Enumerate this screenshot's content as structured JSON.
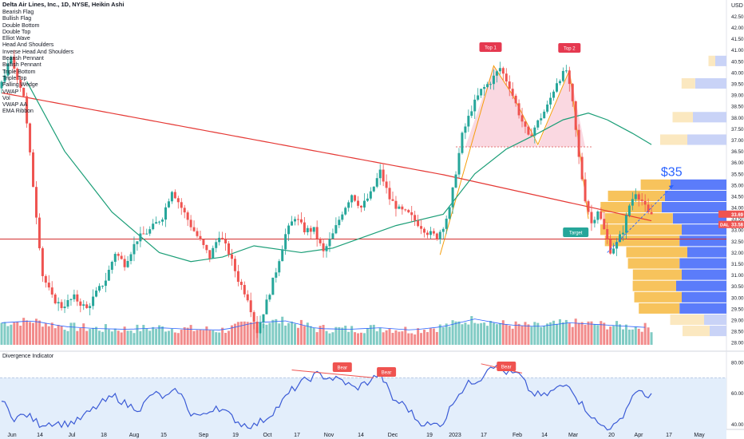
{
  "header": {
    "title": "Delta Air Lines, Inc., 1D, NYSE, Heikin Ashi",
    "currency": "USD",
    "ticker_badge": "DAL",
    "price_last": "33.58",
    "price_current": "33.69"
  },
  "overlays": [
    "Bearish Flag",
    "Bullish Flag",
    "Double Bottom",
    "Double Top",
    "Elliot Wave",
    "Head And Shoulders",
    "Inverse Head And Shoulders",
    "Bearish Pennant",
    "Bullish Pennant",
    "Triple Bottom",
    "Triple Top",
    "Falling Wedge",
    "VWAP",
    "Vol",
    "VWAP AA",
    "EMA Ribbon"
  ],
  "annotations": {
    "top1": "Top 1",
    "top2": "Top 2",
    "target": "Target",
    "price_target": "$35",
    "bear": "Bear"
  },
  "indicator": {
    "title": "Divergence Indicator"
  },
  "colors": {
    "up": "#26a69a",
    "down": "#ef5350",
    "ma_long": "#e53935",
    "ma_mid": "#1b9e77",
    "volume_up": "#80cbc4",
    "volume_down": "#f28b8b",
    "profile_up": "#f7c35c",
    "profile_down": "#5b7cfa",
    "osc_line": "#3b5bd6",
    "osc_band": "#e3eefb",
    "support": "#d32f2f"
  },
  "chart_data": {
    "type": "candlestick",
    "x_ticks": [
      "Jun",
      "14",
      "Jul",
      "18",
      "Aug",
      "15",
      "Sep",
      "19",
      "Oct",
      "17",
      "Nov",
      "14",
      "Dec",
      "19",
      "2023",
      "17",
      "Feb",
      "14",
      "Mar",
      "20",
      "Apr",
      "17",
      "May"
    ],
    "y_ticks": [
      "42.50",
      "42.00",
      "41.50",
      "41.00",
      "40.50",
      "40.00",
      "39.50",
      "39.00",
      "38.50",
      "38.00",
      "37.50",
      "37.00",
      "36.50",
      "36.00",
      "35.50",
      "35.00",
      "34.50",
      "34.00",
      "33.50",
      "33.00",
      "32.50",
      "32.00",
      "31.50",
      "31.00",
      "30.50",
      "30.00",
      "29.50",
      "29.00",
      "28.50",
      "28.00"
    ],
    "ylim": [
      27.9,
      42.8
    ],
    "support_level": 32.6,
    "neckline_level": 36.7,
    "price_path": [
      [
        0,
        39.3
      ],
      [
        4,
        40.6
      ],
      [
        8,
        39.0
      ],
      [
        11,
        35.0
      ],
      [
        14,
        31.0
      ],
      [
        17,
        30.0
      ],
      [
        20,
        29.6
      ],
      [
        24,
        30.0
      ],
      [
        28,
        29.5
      ],
      [
        31,
        30.2
      ],
      [
        34,
        30.8
      ],
      [
        37,
        32.0
      ],
      [
        40,
        31.5
      ],
      [
        44,
        32.6
      ],
      [
        48,
        33.0
      ],
      [
        52,
        33.6
      ],
      [
        55,
        34.8
      ],
      [
        58,
        34.0
      ],
      [
        61,
        33.2
      ],
      [
        64,
        32.5
      ],
      [
        67,
        31.8
      ],
      [
        70,
        32.8
      ],
      [
        73,
        32.0
      ],
      [
        76,
        30.8
      ],
      [
        79,
        30.0
      ],
      [
        82,
        28.5
      ],
      [
        85,
        29.8
      ],
      [
        88,
        31.2
      ],
      [
        91,
        32.8
      ],
      [
        94,
        33.6
      ],
      [
        97,
        33.0
      ],
      [
        100,
        33.0
      ],
      [
        103,
        32.0
      ],
      [
        106,
        32.8
      ],
      [
        109,
        33.8
      ],
      [
        112,
        34.6
      ],
      [
        115,
        34.0
      ],
      [
        118,
        34.6
      ],
      [
        121,
        35.6
      ],
      [
        124,
        34.4
      ],
      [
        127,
        33.9
      ],
      [
        130,
        33.7
      ],
      [
        133,
        33.3
      ],
      [
        136,
        32.9
      ],
      [
        139,
        32.7
      ],
      [
        141,
        33.2
      ],
      [
        143,
        33.9
      ],
      [
        145,
        35.6
      ],
      [
        147,
        37.2
      ],
      [
        150,
        38.4
      ],
      [
        153,
        39.2
      ],
      [
        156,
        39.6
      ],
      [
        159,
        40.2
      ],
      [
        162,
        39.4
      ],
      [
        165,
        38.2
      ],
      [
        168,
        37.1
      ],
      [
        171,
        37.8
      ],
      [
        174,
        38.5
      ],
      [
        177,
        39.6
      ],
      [
        180,
        40.1
      ],
      [
        182,
        38.6
      ],
      [
        184,
        36.2
      ],
      [
        186,
        34.4
      ],
      [
        188,
        33.3
      ],
      [
        190,
        33.9
      ],
      [
        192,
        33.0
      ],
      [
        194,
        32.1
      ],
      [
        196,
        32.4
      ],
      [
        198,
        33.0
      ],
      [
        200,
        34.1
      ],
      [
        202,
        34.7
      ],
      [
        204,
        34.3
      ],
      [
        206,
        33.7
      ]
    ],
    "volume_path": [
      [
        0,
        0.45
      ],
      [
        10,
        0.5
      ],
      [
        20,
        0.35
      ],
      [
        30,
        0.3
      ],
      [
        40,
        0.28
      ],
      [
        50,
        0.32
      ],
      [
        60,
        0.28
      ],
      [
        70,
        0.26
      ],
      [
        80,
        0.45
      ],
      [
        90,
        0.5
      ],
      [
        100,
        0.3
      ],
      [
        110,
        0.28
      ],
      [
        120,
        0.32
      ],
      [
        130,
        0.26
      ],
      [
        140,
        0.35
      ],
      [
        150,
        0.55
      ],
      [
        160,
        0.4
      ],
      [
        170,
        0.35
      ],
      [
        180,
        0.45
      ],
      [
        190,
        0.4
      ],
      [
        200,
        0.35
      ],
      [
        206,
        0.32
      ]
    ],
    "oscillator_ylim": [
      36,
      82
    ],
    "oscillator_ticks": [
      "80.00",
      "60.00",
      "40.00"
    ],
    "oscillator_path": [
      [
        0,
        55
      ],
      [
        4,
        44
      ],
      [
        8,
        46
      ],
      [
        12,
        40
      ],
      [
        16,
        41
      ],
      [
        20,
        40
      ],
      [
        24,
        42
      ],
      [
        28,
        48
      ],
      [
        32,
        54
      ],
      [
        36,
        58
      ],
      [
        40,
        52
      ],
      [
        44,
        50
      ],
      [
        48,
        60
      ],
      [
        52,
        57
      ],
      [
        56,
        62
      ],
      [
        60,
        47
      ],
      [
        64,
        45
      ],
      [
        68,
        52
      ],
      [
        72,
        46
      ],
      [
        76,
        40
      ],
      [
        80,
        39
      ],
      [
        84,
        44
      ],
      [
        88,
        52
      ],
      [
        92,
        62
      ],
      [
        96,
        68
      ],
      [
        100,
        72
      ],
      [
        104,
        70
      ],
      [
        108,
        68
      ],
      [
        112,
        63
      ],
      [
        116,
        67
      ],
      [
        120,
        73
      ],
      [
        124,
        56
      ],
      [
        128,
        52
      ],
      [
        132,
        42
      ],
      [
        136,
        39
      ],
      [
        140,
        41
      ],
      [
        144,
        58
      ],
      [
        148,
        66
      ],
      [
        152,
        70
      ],
      [
        155,
        79
      ],
      [
        158,
        75
      ],
      [
        161,
        73
      ],
      [
        164,
        72
      ],
      [
        168,
        60
      ],
      [
        172,
        58
      ],
      [
        176,
        63
      ],
      [
        180,
        66
      ],
      [
        183,
        55
      ],
      [
        186,
        48
      ],
      [
        189,
        40
      ],
      [
        192,
        38
      ],
      [
        195,
        39
      ],
      [
        198,
        50
      ],
      [
        201,
        62
      ],
      [
        204,
        58
      ],
      [
        206,
        60
      ]
    ],
    "oscillator_divergences": [
      [
        [
          92,
          75
        ],
        [
          118,
          70
        ]
      ],
      [
        [
          152,
          79
        ],
        [
          165,
          73
        ]
      ]
    ],
    "volume_profile": [
      {
        "price": 35.0,
        "up": 0.22,
        "down": 0.5
      },
      {
        "price": 34.5,
        "up": 0.42,
        "down": 0.55
      },
      {
        "price": 34.0,
        "up": 0.45,
        "down": 0.58
      },
      {
        "price": 33.5,
        "up": 0.5,
        "down": 0.48
      },
      {
        "price": 33.0,
        "up": 0.6,
        "down": 0.4
      },
      {
        "price": 32.5,
        "up": 0.55,
        "down": 0.42
      },
      {
        "price": 32.0,
        "up": 0.45,
        "down": 0.35
      },
      {
        "price": 31.5,
        "up": 0.38,
        "down": 0.42
      },
      {
        "price": 31.0,
        "up": 0.36,
        "down": 0.4
      },
      {
        "price": 30.5,
        "up": 0.32,
        "down": 0.45
      },
      {
        "price": 30.0,
        "up": 0.35,
        "down": 0.4
      },
      {
        "price": 29.5,
        "up": 0.3,
        "down": 0.42
      },
      {
        "price": 29.0,
        "up": 0.25,
        "down": 0.2
      },
      {
        "price": 28.5,
        "up": 0.2,
        "down": 0.15
      },
      {
        "price": 37.0,
        "up": 0.2,
        "down": 0.35
      },
      {
        "price": 38.0,
        "up": 0.15,
        "down": 0.3
      },
      {
        "price": 39.5,
        "up": 0.1,
        "down": 0.28
      },
      {
        "price": 40.5,
        "up": 0.05,
        "down": 0.1
      }
    ],
    "events": [
      {
        "label": "Top 1",
        "x": 155,
        "y": 40.3
      },
      {
        "label": "Top 2",
        "x": 180,
        "y": 40.1
      },
      {
        "label": "Target",
        "x": 183,
        "y": 32.6
      },
      {
        "label": "$35",
        "x": 205,
        "y": 35.4
      }
    ]
  }
}
